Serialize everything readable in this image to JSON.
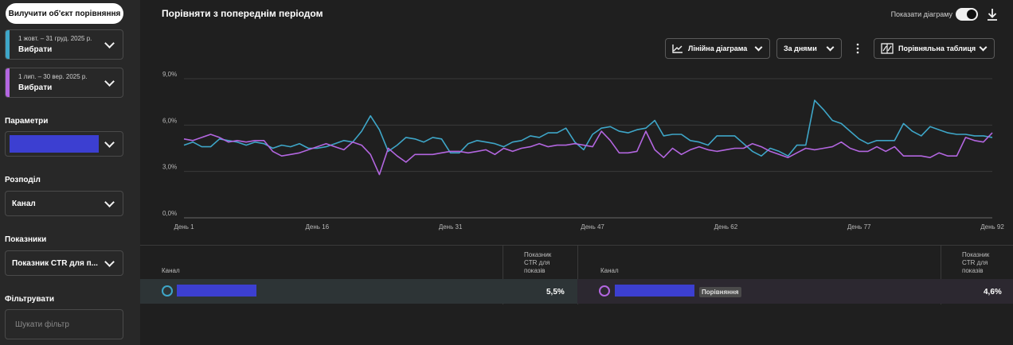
{
  "sidebar": {
    "exclude_button": "Вилучити об'єкт порівняння",
    "period_a": {
      "range": "1 жовт. – 31 груд. 2025 р.",
      "choose": "Вибрати",
      "color": "#3ea6c8"
    },
    "period_b": {
      "range": "1 лип. – 30 вер. 2025 р.",
      "choose": "Вибрати",
      "color": "#b366e0"
    },
    "parameters_label": "Параметри",
    "distribution_label": "Розподіл",
    "distribution_value": "Канал",
    "metrics_label": "Показники",
    "metrics_value": "Показник CTR для п...",
    "filter_label": "Фільтрувати",
    "filter_placeholder": "Шукати фільтр"
  },
  "header": {
    "title": "Порівняти з попереднім періодом",
    "show_chart_label": "Показати діаграму",
    "line_chart": "Лінійна діаграма",
    "by_days": "За днями",
    "compare_table": "Порівняльна таблиця"
  },
  "chart_data": {
    "type": "line",
    "y_ticks": [
      "9,0%",
      "6,0%",
      "3,0%",
      "0,0%"
    ],
    "ylim": [
      0,
      9
    ],
    "x_ticks": [
      {
        "day": 1,
        "label": "День 1"
      },
      {
        "day": 16,
        "label": "День 16"
      },
      {
        "day": 31,
        "label": "День 31"
      },
      {
        "day": 47,
        "label": "День 47"
      },
      {
        "day": 62,
        "label": "День 62"
      },
      {
        "day": 77,
        "label": "День 77"
      },
      {
        "day": 92,
        "label": "День 92"
      }
    ],
    "series": [
      {
        "color": "#3ea6c8",
        "values": [
          4.7,
          4.9,
          4.6,
          4.6,
          5.1,
          5.0,
          4.9,
          4.7,
          4.9,
          4.8,
          4.5,
          4.7,
          4.6,
          4.8,
          4.5,
          4.5,
          4.6,
          4.8,
          5.0,
          4.9,
          5.6,
          6.6,
          5.7,
          4.3,
          4.7,
          5.2,
          5.1,
          4.9,
          5.2,
          5.1,
          4.2,
          4.2,
          4.8,
          5.0,
          4.9,
          4.8,
          4.6,
          4.9,
          5.0,
          5.3,
          5.2,
          5.5,
          5.5,
          5.8,
          4.9,
          4.4,
          5.4,
          5.8,
          5.9,
          5.6,
          5.5,
          5.7,
          5.8,
          6.3,
          5.3,
          5.4,
          5.4,
          5.0,
          4.9,
          4.7,
          5.3,
          5.3,
          5.3,
          4.8,
          4.3,
          4.0,
          4.5,
          4.3,
          4.0,
          4.7,
          4.7,
          7.6,
          7.0,
          6.3,
          6.1,
          5.6,
          5.1,
          4.8,
          5.0,
          5.0,
          5.0,
          6.1,
          5.6,
          5.3,
          5.9,
          5.7,
          5.5,
          5.4,
          5.4,
          5.3,
          5.3,
          5.2
        ]
      },
      {
        "color": "#b366e0",
        "values": [
          5.1,
          5.0,
          5.2,
          5.4,
          5.2,
          4.9,
          5.0,
          4.9,
          5.0,
          5.0,
          4.3,
          4.0,
          4.1,
          4.2,
          4.4,
          4.6,
          4.8,
          4.6,
          4.4,
          4.9,
          4.7,
          4.1,
          2.8,
          4.5,
          4.0,
          3.6,
          4.1,
          4.1,
          4.1,
          4.2,
          4.3,
          4.3,
          4.2,
          4.3,
          4.4,
          4.1,
          4.5,
          4.3,
          4.5,
          4.6,
          4.8,
          4.6,
          4.7,
          4.7,
          4.8,
          4.7,
          4.6,
          5.6,
          5.0,
          4.2,
          4.2,
          4.3,
          5.6,
          4.4,
          3.9,
          4.5,
          4.1,
          4.4,
          4.6,
          4.4,
          4.3,
          4.4,
          4.5,
          4.5,
          4.8,
          4.6,
          4.3,
          4.1,
          3.9,
          4.2,
          4.5,
          4.4,
          4.5,
          4.6,
          4.9,
          4.5,
          4.3,
          4.3,
          4.6,
          4.3,
          4.6,
          4.0,
          4.0,
          4.0,
          3.9,
          4.2,
          4.0,
          4.0,
          5.2,
          5.0,
          4.9,
          5.5
        ]
      }
    ]
  },
  "table": {
    "left": {
      "col_channel": "Канал",
      "col_metric": [
        "Показник",
        "CTR для",
        "показів"
      ],
      "value": "5,5%",
      "color": "#3ea6c8"
    },
    "right": {
      "col_channel": "Канал",
      "col_metric": [
        "Показник",
        "CTR для",
        "показів"
      ],
      "value": "4,6%",
      "color": "#b366e0",
      "badge": "Порівняння"
    }
  }
}
